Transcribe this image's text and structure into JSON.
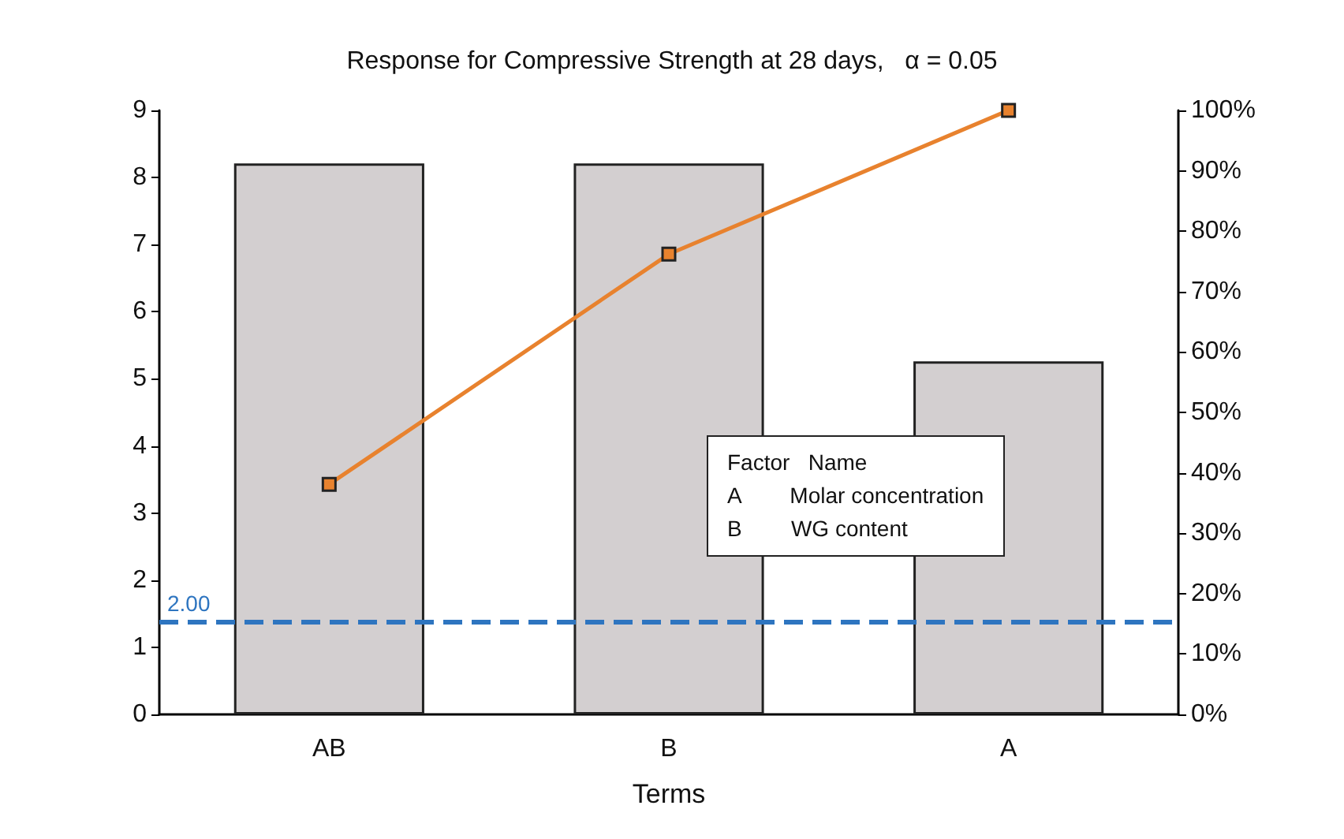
{
  "chart_data": {
    "type": "bar",
    "title": "Response for Compressive Strength at 28 days,   α = 0.05",
    "xlabel": "Terms",
    "categories": [
      "AB",
      "B",
      "A"
    ],
    "series": [
      {
        "type": "bar",
        "color": "#d3cfd0",
        "values": [
          8.21,
          8.21,
          5.26
        ]
      },
      {
        "type": "line",
        "axis": "y2",
        "color": "#e8822e",
        "values": [
          38.1,
          76.2,
          100
        ]
      }
    ],
    "ylim": [
      0,
      9
    ],
    "yticks": [
      0,
      1,
      2,
      3,
      4,
      5,
      6,
      7,
      8,
      9
    ],
    "y2lim": [
      0,
      100
    ],
    "y2ticks": [
      {
        "value": 0,
        "label": "0%"
      },
      {
        "value": 10,
        "label": "10%"
      },
      {
        "value": 20,
        "label": "20%"
      },
      {
        "value": 30,
        "label": "30%"
      },
      {
        "value": 40,
        "label": "40%"
      },
      {
        "value": 50,
        "label": "50%"
      },
      {
        "value": 60,
        "label": "60%"
      },
      {
        "value": 70,
        "label": "70%"
      },
      {
        "value": 80,
        "label": "80%"
      },
      {
        "value": 90,
        "label": "90%"
      },
      {
        "value": 100,
        "label": "100%"
      }
    ],
    "ref_lines": [
      {
        "axis": "y",
        "value": 1.38,
        "color": "#2e75c0",
        "line_style": "dashed"
      }
    ],
    "annotations": [
      {
        "text": "2.00",
        "y": 1.38
      },
      "Factor   Name",
      "A        Molar concentration",
      "B        WG content"
    ],
    "marker": "square",
    "grid": false
  }
}
